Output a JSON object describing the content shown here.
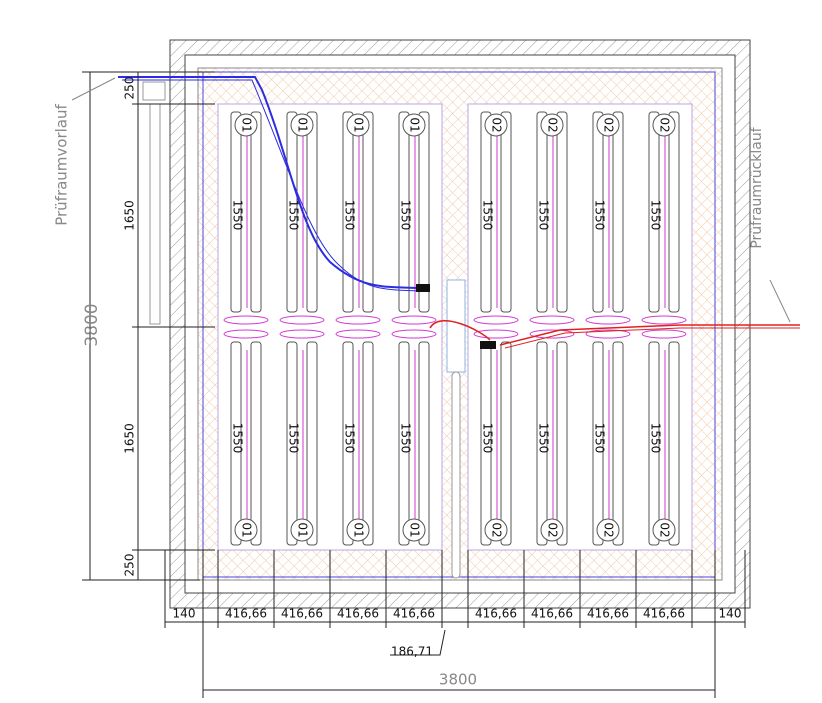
{
  "labels": {
    "supply": "Prüfraumvorlauf",
    "return": "Prüfraumrücklauf"
  },
  "dimensions": {
    "vertical": [
      "250",
      "1650",
      "1650",
      "250"
    ],
    "vertical_total": "3800",
    "horizontal": [
      "140",
      "416,66",
      "416,66",
      "416,66",
      "416,66",
      "416,66",
      "416,66",
      "416,66",
      "416,66",
      "140"
    ],
    "gap": "186,71",
    "horizontal_total": "3800"
  },
  "panels": {
    "top": [
      {
        "circuit": "01",
        "length": "1550"
      },
      {
        "circuit": "01",
        "length": "1550"
      },
      {
        "circuit": "01",
        "length": "1550"
      },
      {
        "circuit": "01",
        "length": "1550"
      },
      {
        "circuit": "02",
        "length": "1550"
      },
      {
        "circuit": "02",
        "length": "1550"
      },
      {
        "circuit": "02",
        "length": "1550"
      },
      {
        "circuit": "02",
        "length": "1550"
      }
    ],
    "bottom": [
      {
        "circuit": "01",
        "length": "1550"
      },
      {
        "circuit": "01",
        "length": "1550"
      },
      {
        "circuit": "01",
        "length": "1550"
      },
      {
        "circuit": "01",
        "length": "1550"
      },
      {
        "circuit": "02",
        "length": "1550"
      },
      {
        "circuit": "02",
        "length": "1550"
      },
      {
        "circuit": "02",
        "length": "1550"
      },
      {
        "circuit": "02",
        "length": "1550"
      }
    ]
  }
}
